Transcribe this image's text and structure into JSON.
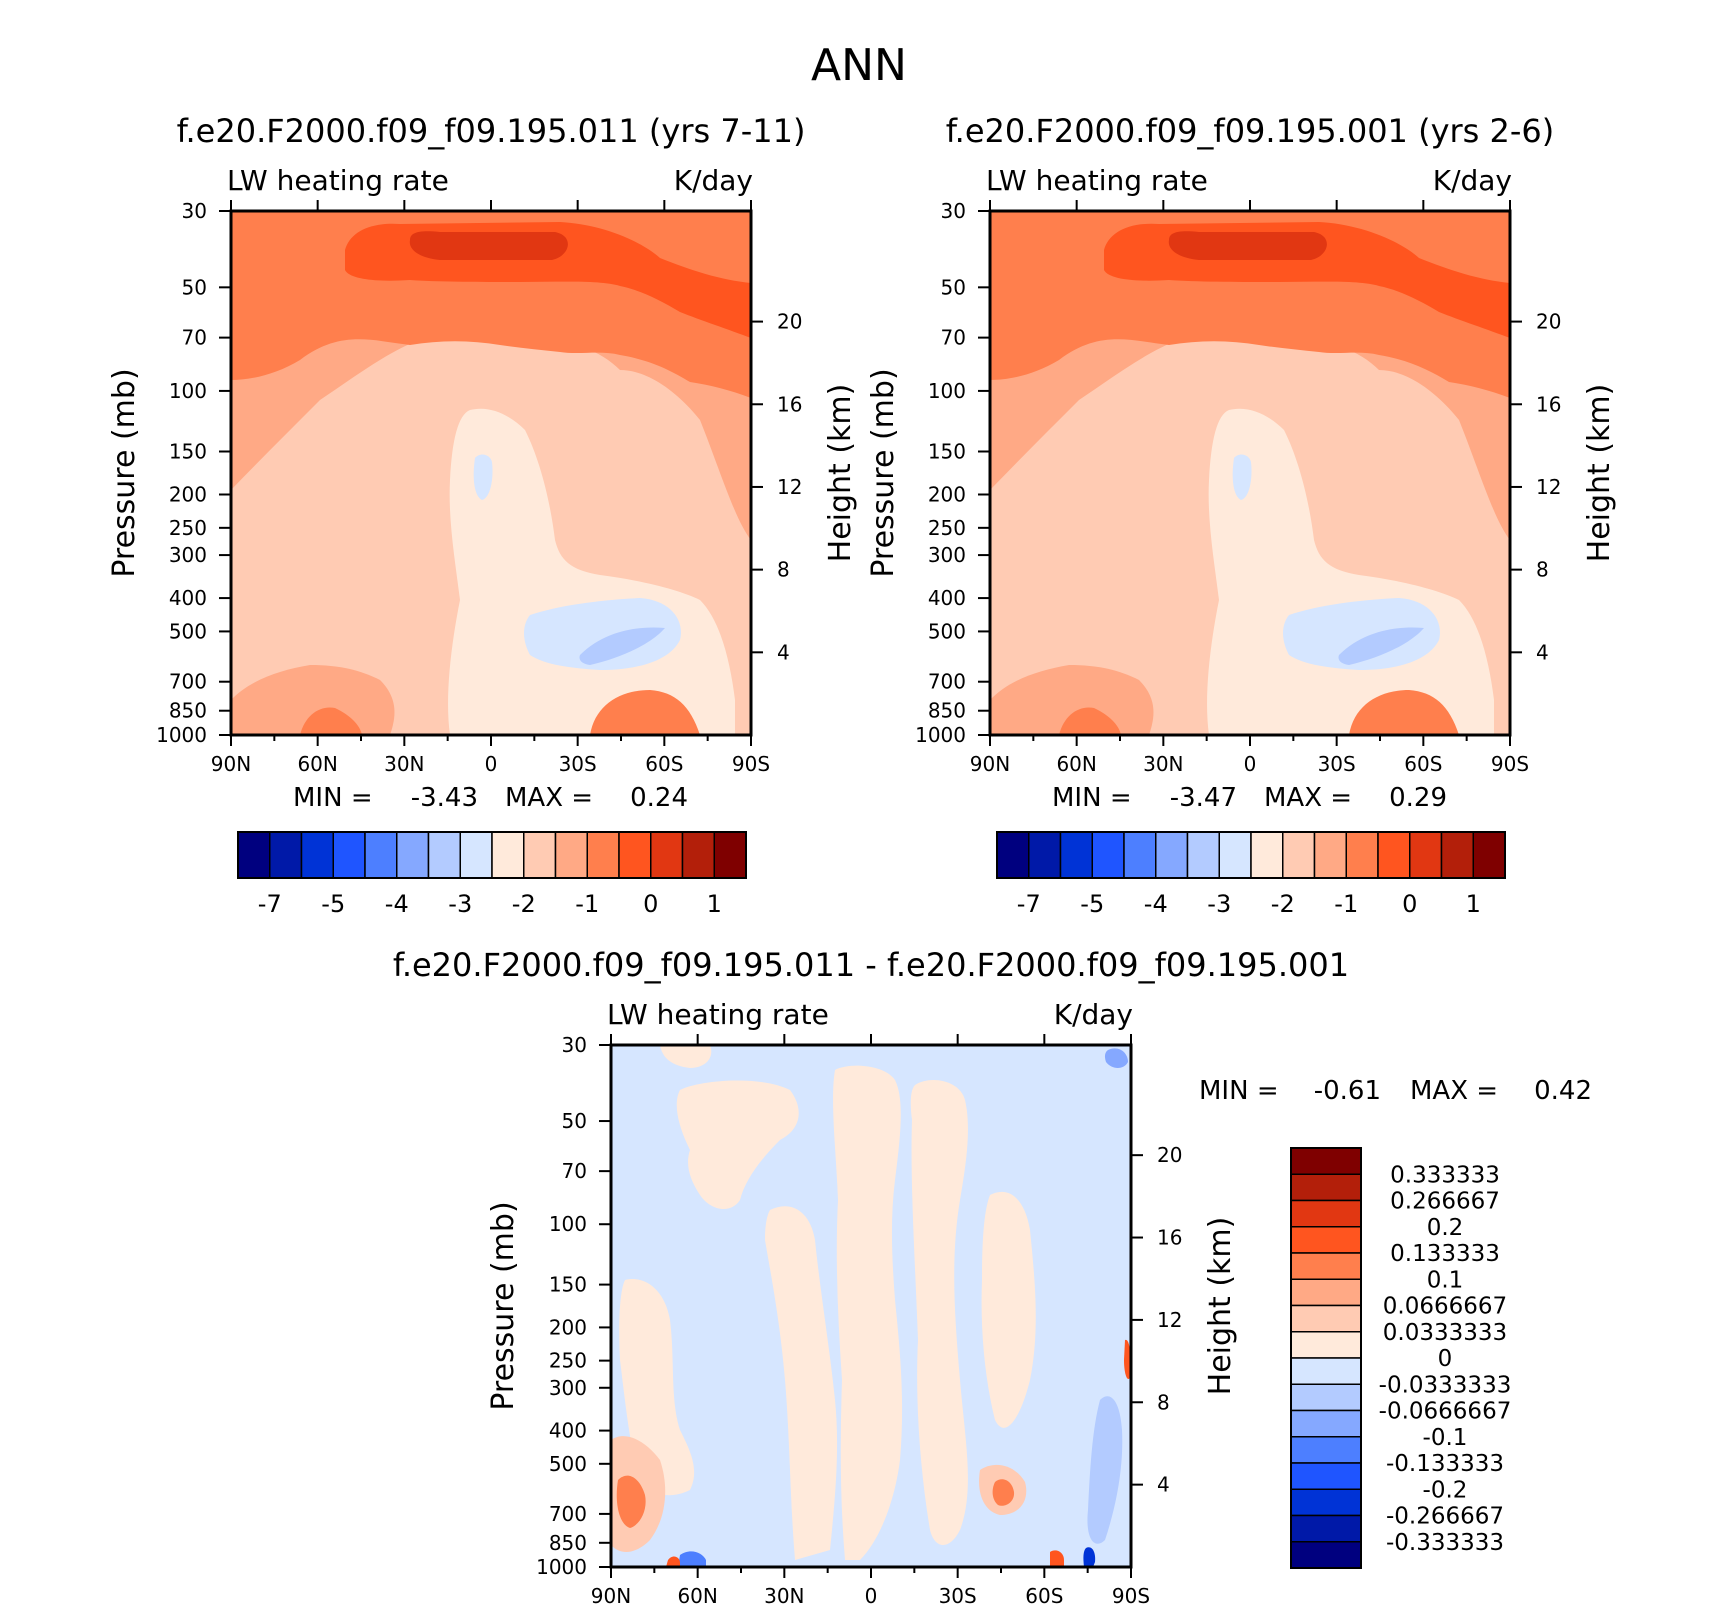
{
  "figure": {
    "title": "ANN"
  },
  "colors": {
    "heating_scale": [
      "#00007f",
      "#0019a8",
      "#0033d6",
      "#1f55ff",
      "#4d7fff",
      "#85a8ff",
      "#b3cbff",
      "#d6e6ff",
      "#ffeadb",
      "#ffcbb3",
      "#ffa985",
      "#ff7f4d",
      "#ff551f",
      "#e13712",
      "#b31f0a",
      "#7f0000"
    ],
    "diff_scale": [
      "#00007f",
      "#0019a8",
      "#0033d6",
      "#1f55ff",
      "#4d7fff",
      "#85a8ff",
      "#b3cbff",
      "#d6e6ff",
      "#ffeadb",
      "#ffcbb3",
      "#ffa985",
      "#ff7f4d",
      "#ff551f",
      "#e13712",
      "#b31f0a",
      "#7f0000"
    ]
  },
  "panels": [
    {
      "title": "f.e20.F2000.f09_f09.195.011 (yrs 7-11)",
      "variable": "LW heating rate",
      "units": "K/day",
      "ylabel": "Pressure (mb)",
      "ylabel_right": "Height (km)",
      "min_label": "MIN =",
      "min_value": "-3.43",
      "max_label": "MAX =",
      "max_value": "0.24"
    },
    {
      "title": "f.e20.F2000.f09_f09.195.001 (yrs 2-6)",
      "variable": "LW heating rate",
      "units": "K/day",
      "ylabel": "Pressure (mb)",
      "ylabel_right": "Height (km)",
      "min_label": "MIN =",
      "min_value": "-3.47",
      "max_label": "MAX =",
      "max_value": "0.29"
    },
    {
      "title": "f.e20.F2000.f09_f09.195.011 - f.e20.F2000.f09_f09.195.001",
      "variable": "LW heating rate",
      "units": "K/day",
      "ylabel": "Pressure (mb)",
      "ylabel_right": "Height (km)",
      "min_label": "MIN =",
      "min_value": "-0.61",
      "max_label": "MAX =",
      "max_value": "0.42"
    }
  ],
  "chart_data": [
    {
      "type": "heatmap",
      "title": "f.e20.F2000.f09_f09.195.011 (yrs 7-11)",
      "x_ticks": [
        "90N",
        "60N",
        "30N",
        "0",
        "30S",
        "60S",
        "90S"
      ],
      "x_values": [
        90,
        60,
        30,
        0,
        -30,
        -60,
        -90
      ],
      "y_ticks": [
        "30",
        "50",
        "70",
        "100",
        "150",
        "200",
        "250",
        "300",
        "400",
        "500",
        "700",
        "850",
        "1000"
      ],
      "y_values": [
        30,
        50,
        70,
        100,
        150,
        200,
        250,
        300,
        400,
        500,
        700,
        850,
        1000
      ],
      "y_scale": "log",
      "ylim": [
        1000,
        30
      ],
      "y_right_ticks": [
        "20",
        "16",
        "12",
        "8",
        "4"
      ],
      "y_right_values": [
        20,
        16,
        12,
        8,
        4
      ],
      "colorbar_labels": [
        "-7",
        "-5",
        "-4",
        "-3",
        "-2",
        "-1",
        "0",
        "1"
      ],
      "min": -3.43,
      "max": 0.24
    },
    {
      "type": "heatmap",
      "title": "f.e20.F2000.f09_f09.195.001 (yrs 2-6)",
      "x_ticks": [
        "90N",
        "60N",
        "30N",
        "0",
        "30S",
        "60S",
        "90S"
      ],
      "x_values": [
        90,
        60,
        30,
        0,
        -30,
        -60,
        -90
      ],
      "y_ticks": [
        "30",
        "50",
        "70",
        "100",
        "150",
        "200",
        "250",
        "300",
        "400",
        "500",
        "700",
        "850",
        "1000"
      ],
      "y_values": [
        30,
        50,
        70,
        100,
        150,
        200,
        250,
        300,
        400,
        500,
        700,
        850,
        1000
      ],
      "y_scale": "log",
      "ylim": [
        1000,
        30
      ],
      "y_right_ticks": [
        "20",
        "16",
        "12",
        "8",
        "4"
      ],
      "y_right_values": [
        20,
        16,
        12,
        8,
        4
      ],
      "colorbar_labels": [
        "-7",
        "-5",
        "-4",
        "-3",
        "-2",
        "-1",
        "0",
        "1"
      ],
      "min": -3.47,
      "max": 0.29
    },
    {
      "type": "heatmap",
      "title": "f.e20.F2000.f09_f09.195.011 - f.e20.F2000.f09_f09.195.001",
      "x_ticks": [
        "90N",
        "60N",
        "30N",
        "0",
        "30S",
        "60S",
        "90S"
      ],
      "x_values": [
        90,
        60,
        30,
        0,
        -30,
        -60,
        -90
      ],
      "y_ticks": [
        "30",
        "50",
        "70",
        "100",
        "150",
        "200",
        "250",
        "300",
        "400",
        "500",
        "700",
        "850",
        "1000"
      ],
      "y_values": [
        30,
        50,
        70,
        100,
        150,
        200,
        250,
        300,
        400,
        500,
        700,
        850,
        1000
      ],
      "y_scale": "log",
      "ylim": [
        1000,
        30
      ],
      "y_right_ticks": [
        "20",
        "16",
        "12",
        "8",
        "4"
      ],
      "y_right_values": [
        20,
        16,
        12,
        8,
        4
      ],
      "colorbar_labels": [
        "0.333333",
        "0.266667",
        "0.2",
        "0.133333",
        "0.1",
        "0.0666667",
        "0.0333333",
        "0",
        "-0.0333333",
        "-0.0666667",
        "-0.1",
        "-0.133333",
        "-0.2",
        "-0.266667",
        "-0.333333"
      ],
      "min": -0.61,
      "max": 0.42
    }
  ]
}
